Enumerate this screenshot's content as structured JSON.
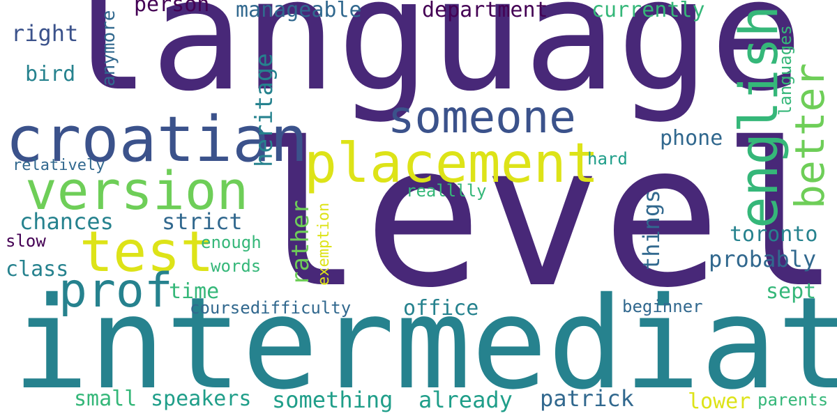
{
  "palette": {
    "background": "#ffffff",
    "dark_purple": "#482878",
    "deep_purple": "#440154",
    "indigo": "#3b528b",
    "blue": "#31688e",
    "teal": "#26828e",
    "green_teal": "#1f9e89",
    "green": "#35b779",
    "lime": "#6ece58",
    "yellow_green": "#b5de2b",
    "yellow": "#dde318"
  },
  "words": {
    "language": "language",
    "level": "level",
    "intermediate": "intermediate",
    "croatian": "croatian",
    "placement": "placement",
    "version": "version",
    "test": "test",
    "someone": "someone",
    "english": "english",
    "prof": "prof",
    "better": "better",
    "heritage": "heritage",
    "manageable": "manageable",
    "department": "department",
    "currently": "currently",
    "person": "person",
    "right": "right",
    "anymore": "anymore",
    "bird": "bird",
    "languages": "languages",
    "phone": "phone",
    "hard": "hard",
    "relatively": "relatively",
    "reallly": "realllly",
    "chances": "chances",
    "strict": "strict",
    "things": "things",
    "toronto": "toronto",
    "rather": "rather",
    "exemption": "exemption",
    "slow": "slow",
    "enough": "enough",
    "probably": "probably",
    "class": "class",
    "words": "words",
    "time": "time",
    "sept": "sept",
    "coursedifficulty": "coursedifficulty",
    "office": "office",
    "beginner": "beginner",
    "small": "small",
    "speakers": "speakers",
    "something": "something",
    "already": "already",
    "patrick": "patrick",
    "lower": "lower",
    "parents": "parents"
  }
}
